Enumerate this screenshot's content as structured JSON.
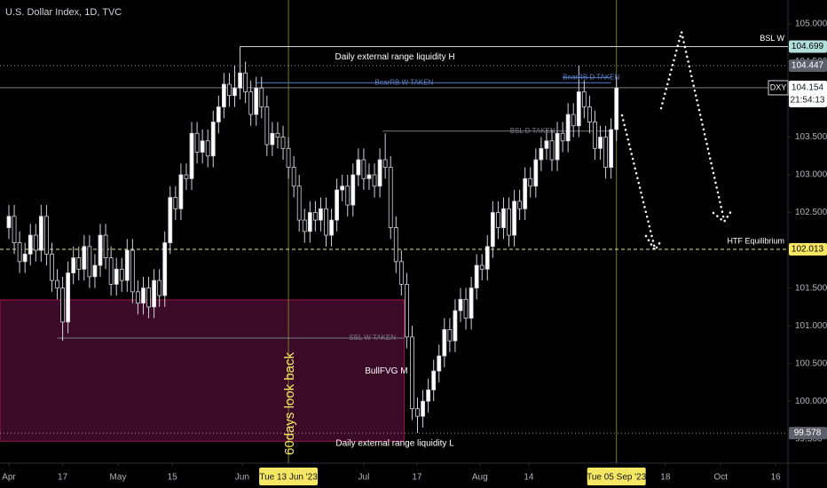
{
  "chart_data": {
    "type": "candlestick",
    "title": "U.S. Dollar Index, 1D, TVC",
    "up_color": "#ffffff",
    "down_color": "#000000",
    "wick_color": "#d1d4dc",
    "xlim": [
      -1.65,
      144.9
    ],
    "ylim": [
      99.179,
      105.317
    ],
    "xticks": [
      {
        "value": 0,
        "label": "Apr"
      },
      {
        "value": 10,
        "label": "17"
      },
      {
        "value": 20.3,
        "label": "May"
      },
      {
        "value": 30.4,
        "label": "15"
      },
      {
        "value": 43.4,
        "label": "Jun"
      },
      {
        "value": 52,
        "label": "Tue 13 Jun '23",
        "highlight": true
      },
      {
        "value": 66,
        "label": "Jul"
      },
      {
        "value": 75.9,
        "label": "17"
      },
      {
        "value": 87.6,
        "label": "Aug"
      },
      {
        "value": 96.7,
        "label": "14"
      },
      {
        "value": 113,
        "label": "Tue 05 Sep '23",
        "highlight": true
      },
      {
        "value": 122.1,
        "label": "18"
      },
      {
        "value": 132.4,
        "label": "Oct"
      },
      {
        "value": 142.6,
        "label": "16"
      }
    ],
    "yticks": [
      {
        "value": 99.5,
        "label": "99.500"
      },
      {
        "value": 100,
        "label": "100.000"
      },
      {
        "value": 100.5,
        "label": "100.500"
      },
      {
        "value": 101,
        "label": "101.000"
      },
      {
        "value": 101.5,
        "label": "101.500"
      },
      {
        "value": 102,
        "label": "102.000"
      },
      {
        "value": 102.5,
        "label": "102.500"
      },
      {
        "value": 103,
        "label": "103.000"
      },
      {
        "value": 103.5,
        "label": "103.500"
      },
      {
        "value": 104,
        "label": "104.000"
      },
      {
        "value": 104.5,
        "label": "104.500"
      },
      {
        "value": 105,
        "label": "105.000"
      }
    ],
    "candles": {
      "open": [
        102.3,
        102.45,
        102.1,
        101.85,
        101.95,
        102.2,
        102.0,
        102.45,
        101.95,
        101.6,
        101.5,
        101.05,
        101.7,
        101.9,
        101.75,
        102.05,
        101.65,
        101.8,
        102.2,
        101.9,
        101.55,
        101.75,
        101.6,
        102.0,
        101.45,
        101.3,
        101.5,
        101.25,
        101.6,
        101.4,
        102.1,
        102.7,
        102.55,
        103.0,
        102.95,
        103.55,
        103.3,
        103.45,
        103.25,
        103.7,
        103.9,
        104.2,
        104.05,
        104.15,
        104.35,
        104.1,
        103.8,
        104.15,
        103.9,
        103.4,
        103.55,
        103.5,
        103.35,
        103.1,
        102.85,
        102.4,
        102.25,
        102.5,
        102.4,
        102.55,
        102.2,
        102.4,
        102.8,
        102.85,
        102.6,
        103.0,
        103.2,
        102.95,
        103.0,
        102.85,
        103.2,
        103.1,
        102.3,
        101.85,
        101.55,
        100.85,
        99.9,
        99.8,
        100.0,
        100.15,
        100.4,
        100.6,
        100.95,
        100.8,
        101.2,
        101.35,
        101.1,
        101.5,
        101.8,
        101.75,
        102.05,
        102.5,
        102.3,
        102.55,
        102.2,
        102.65,
        102.55,
        102.95,
        102.85,
        103.2,
        103.35,
        103.45,
        103.2,
        103.55,
        103.45,
        103.8,
        103.65,
        104.1,
        103.9,
        103.7,
        103.35,
        103.5,
        103.1,
        103.6
      ],
      "high": [
        102.6,
        102.6,
        102.25,
        102.1,
        102.35,
        102.35,
        102.6,
        102.6,
        102.1,
        101.75,
        101.65,
        101.85,
        102.05,
        102.05,
        102.2,
        102.2,
        101.95,
        102.35,
        102.35,
        102.05,
        101.9,
        101.9,
        102.15,
        102.15,
        101.6,
        101.65,
        101.65,
        101.75,
        101.75,
        102.25,
        102.85,
        102.85,
        103.15,
        103.15,
        103.7,
        103.7,
        103.6,
        103.6,
        103.85,
        104.05,
        104.35,
        104.35,
        104.45,
        104.7,
        104.5,
        104.25,
        104.3,
        104.3,
        104.05,
        103.7,
        103.7,
        103.65,
        103.5,
        103.25,
        103.0,
        102.55,
        102.65,
        102.65,
        102.7,
        102.7,
        102.55,
        102.95,
        103.0,
        103.0,
        103.15,
        103.35,
        103.35,
        103.15,
        103.15,
        103.35,
        103.55,
        103.25,
        102.45,
        102.0,
        101.7,
        101.0,
        100.05,
        100.15,
        100.3,
        100.55,
        100.75,
        101.1,
        101.1,
        101.35,
        101.5,
        101.5,
        101.65,
        101.95,
        101.95,
        102.2,
        102.65,
        102.65,
        102.7,
        102.7,
        102.8,
        102.8,
        103.1,
        103.1,
        103.35,
        103.5,
        103.6,
        103.6,
        103.7,
        103.7,
        103.95,
        103.95,
        104.45,
        104.25,
        104.05,
        103.85,
        103.65,
        103.65,
        103.75,
        104.3
      ],
      "low": [
        102.15,
        101.95,
        101.7,
        101.7,
        101.8,
        101.85,
        101.85,
        101.8,
        101.45,
        101.35,
        100.8,
        100.9,
        101.55,
        101.6,
        101.6,
        101.5,
        101.5,
        101.65,
        101.75,
        101.4,
        101.4,
        101.45,
        101.45,
        101.3,
        101.15,
        101.15,
        101.1,
        101.1,
        101.25,
        101.25,
        101.95,
        102.4,
        102.4,
        102.8,
        102.8,
        103.15,
        103.15,
        103.1,
        103.1,
        103.55,
        103.75,
        103.9,
        103.9,
        104.0,
        103.95,
        103.65,
        103.65,
        103.75,
        103.25,
        103.25,
        103.35,
        103.2,
        102.95,
        102.7,
        102.25,
        102.1,
        102.1,
        102.25,
        102.25,
        102.05,
        102.05,
        102.25,
        102.65,
        102.45,
        102.45,
        102.85,
        102.8,
        102.8,
        102.7,
        102.7,
        102.95,
        102.15,
        101.7,
        101.4,
        100.7,
        99.75,
        99.58,
        99.65,
        99.85,
        100.0,
        100.25,
        100.45,
        100.65,
        100.65,
        101.05,
        100.95,
        100.95,
        101.35,
        101.6,
        101.6,
        101.9,
        102.15,
        102.15,
        102.05,
        102.05,
        102.4,
        102.4,
        102.7,
        102.7,
        103.05,
        103.2,
        103.05,
        103.05,
        103.3,
        103.3,
        103.5,
        103.5,
        103.75,
        103.55,
        103.2,
        103.2,
        102.95,
        102.95,
        103.45
      ],
      "close": [
        102.45,
        102.1,
        101.85,
        101.95,
        102.2,
        102.0,
        102.45,
        101.95,
        101.6,
        101.5,
        101.05,
        101.7,
        101.9,
        101.75,
        102.05,
        101.65,
        101.8,
        102.2,
        101.9,
        101.55,
        101.75,
        101.6,
        102.0,
        101.45,
        101.3,
        101.5,
        101.25,
        101.6,
        101.4,
        102.1,
        102.7,
        102.55,
        103.0,
        102.95,
        103.55,
        103.3,
        103.45,
        103.25,
        103.7,
        103.9,
        104.2,
        104.05,
        104.15,
        104.35,
        104.1,
        103.8,
        104.15,
        103.9,
        103.4,
        103.55,
        103.5,
        103.35,
        103.1,
        102.85,
        102.4,
        102.25,
        102.5,
        102.4,
        102.55,
        102.2,
        102.4,
        102.8,
        102.85,
        102.6,
        103.0,
        103.2,
        102.95,
        103.0,
        102.85,
        103.2,
        103.1,
        102.3,
        101.85,
        101.55,
        100.85,
        99.9,
        99.8,
        100.0,
        100.15,
        100.4,
        100.6,
        100.95,
        100.8,
        101.2,
        101.35,
        101.1,
        101.5,
        101.8,
        101.75,
        102.05,
        102.5,
        102.3,
        102.55,
        102.2,
        102.65,
        102.55,
        102.95,
        102.85,
        103.2,
        103.35,
        103.45,
        103.2,
        103.55,
        103.45,
        103.8,
        103.65,
        104.1,
        103.9,
        103.7,
        103.35,
        103.5,
        103.1,
        103.6,
        104.15
      ]
    },
    "levels": [
      {
        "value": 104.699,
        "start": 43,
        "text": "Daily external range liquidity H",
        "label_at": 71.8,
        "text_below": true,
        "tag": "BSL W",
        "style": "solid",
        "color": "#d1d4dc",
        "box": "#b2dfdb",
        "box_text": "#000000"
      },
      {
        "value": 104.447,
        "style": "dotted",
        "color": "#9598a1",
        "box": "#5d606b",
        "box_text": "#ffffff"
      },
      {
        "value": 104.22,
        "start": 46,
        "end": 112,
        "text": "BearRB W TAKEN",
        "label_at": 73.5,
        "style": "solid",
        "color": "#5b7fc7"
      },
      {
        "value": 104.29,
        "start": 103,
        "end": 112,
        "text": "BearRB D TAKEN",
        "label_at": 108.3,
        "style": "solid",
        "color": "#5b7fc7"
      },
      {
        "value": 103.58,
        "start": 69.5,
        "end": 112,
        "text": "BSL D TAKEN",
        "label_at": 97.4,
        "style": "solid",
        "color": "#787b86"
      },
      {
        "value": 102.013,
        "tag": "HTF Equilibrium",
        "style": "dashed",
        "color": "#e8e0a0",
        "box": "#f5e663",
        "box_text": "#000000"
      },
      {
        "value": 100.837,
        "start": 9,
        "end": 73.5,
        "text": "SSL W TAKEN",
        "label_at": 67.6,
        "style": "solid",
        "color": "#787b86"
      },
      {
        "value": 99.578,
        "text": "Daily external range liquidity L",
        "label_at": 71.8,
        "text_below": true,
        "style": "dotted",
        "color": "#9598a1",
        "box": "#5d606b",
        "box_text": "#ffffff"
      }
    ],
    "last_price": {
      "symbol": "DXY",
      "value": 104.154,
      "countdown": "21:54:13",
      "color": "#787b86"
    },
    "fvg": {
      "text": "BullFVG M",
      "top": 101.343,
      "bottom": 99.47,
      "end": 73.5,
      "label_at": 70.2,
      "label_value": 100.4,
      "color": "#3b0a26",
      "border": "#c2185b"
    },
    "lookback": {
      "text": "60days look back",
      "at": 52,
      "color": "#f5e663"
    }
  }
}
